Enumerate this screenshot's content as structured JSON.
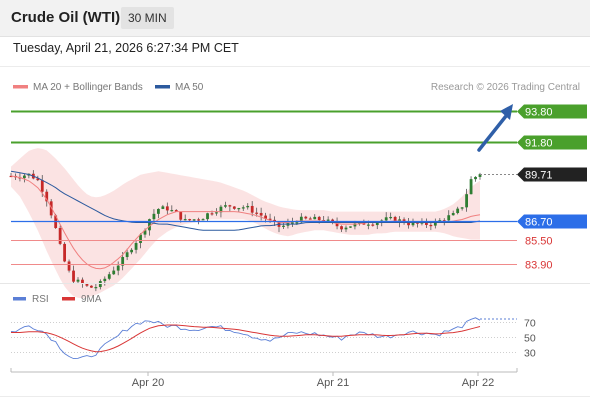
{
  "header": {
    "title": "Crude Oil (WTI)",
    "timeframe": "30 MIN",
    "timestamp": "Tuesday, April 21, 2026 6:27:34 PM CET"
  },
  "legend": {
    "items": [
      {
        "label": "MA 20 + Bollinger Bands",
        "color": "#f08080"
      },
      {
        "label": "MA 50",
        "color": "#2c5a9e"
      }
    ],
    "research": "Research © 2026 Trading Central"
  },
  "chart_data": [
    {
      "type": "candlestick",
      "price_range": [
        82.9,
        95.0
      ],
      "x_labels": [
        "Apr 20",
        "Apr 21",
        "Apr 22"
      ],
      "levels": [
        {
          "value": 93.8,
          "label": "93.80",
          "kind": "target",
          "color": "#4aa02c"
        },
        {
          "value": 91.8,
          "label": "91.80",
          "kind": "target",
          "color": "#4aa02c"
        },
        {
          "value": 89.71,
          "label": "89.71",
          "kind": "last",
          "color": "#222222"
        },
        {
          "value": 86.7,
          "label": "86.70",
          "kind": "pivot",
          "color": "#2c6ee8"
        },
        {
          "value": 85.5,
          "label": "85.50",
          "kind": "support",
          "color": "#d93636"
        },
        {
          "value": 83.9,
          "label": "83.90",
          "kind": "support",
          "color": "#d93636"
        }
      ],
      "close_path": [
        89.6,
        89.6,
        89.7,
        89.4,
        88.3,
        86.5,
        84.3,
        83.0,
        82.7,
        82.4,
        82.5,
        83.1,
        83.7,
        84.3,
        85.1,
        85.8,
        86.9,
        87.5,
        87.5,
        87.2,
        86.7,
        86.8,
        86.9,
        87.3,
        87.5,
        87.7,
        87.6,
        87.6,
        87.3,
        87.0,
        86.6,
        86.3,
        86.5,
        86.8,
        86.8,
        86.8,
        86.8,
        86.5,
        86.3,
        86.4,
        86.5,
        86.6,
        86.6,
        86.8,
        86.8,
        86.7,
        86.5,
        86.5,
        86.5,
        86.6,
        86.9,
        87.1,
        87.7,
        89.4,
        89.7
      ],
      "ma20": [
        89.6,
        89.5,
        89.3,
        88.9,
        88.2,
        87.2,
        86.1,
        85.1,
        84.3,
        83.8,
        83.6,
        83.7,
        84.1,
        84.6,
        85.3,
        85.9,
        86.4,
        86.8,
        87.1,
        87.3,
        87.3,
        87.3,
        87.3,
        87.3,
        87.3,
        87.3,
        87.3,
        87.2,
        87.1,
        86.9,
        86.7,
        86.6,
        86.6,
        86.7,
        86.7,
        86.7,
        86.7,
        86.6,
        86.5,
        86.5,
        86.5,
        86.6,
        86.6,
        86.6,
        86.7,
        86.7,
        86.6,
        86.6,
        86.6,
        86.6,
        86.6,
        86.7,
        86.8,
        87.0,
        87.1
      ],
      "ma50": [
        89.9,
        89.8,
        89.7,
        89.5,
        89.2,
        88.9,
        88.5,
        88.2,
        87.9,
        87.6,
        87.3,
        87.0,
        86.8,
        86.7,
        86.6,
        86.6,
        86.6,
        86.5,
        86.5,
        86.4,
        86.3,
        86.2,
        86.1,
        86.1,
        86.1,
        86.1,
        86.1,
        86.2,
        86.3,
        86.4,
        86.4,
        86.5,
        86.5,
        86.5,
        86.6,
        86.6,
        86.6,
        86.6,
        86.6,
        86.6,
        86.6,
        86.6,
        86.6,
        86.6,
        86.6,
        86.6,
        86.6,
        86.6,
        86.6,
        86.6,
        86.6,
        86.6,
        86.6,
        86.6,
        86.7
      ],
      "bb_upper": [
        90.2,
        90.7,
        91.2,
        91.4,
        91.3,
        90.8,
        90.2,
        89.5,
        88.8,
        88.3,
        88.2,
        88.4,
        88.7,
        89.1,
        89.4,
        89.7,
        89.8,
        89.9,
        89.8,
        89.7,
        89.6,
        89.5,
        89.4,
        89.3,
        89.2,
        89.0,
        88.8,
        88.6,
        88.3,
        88.0,
        87.8,
        87.6,
        87.5,
        87.4,
        87.4,
        87.4,
        87.4,
        87.3,
        87.3,
        87.3,
        87.3,
        87.3,
        87.3,
        87.3,
        87.3,
        87.3,
        87.3,
        87.3,
        87.3,
        87.3,
        87.5,
        87.8,
        88.3,
        88.9,
        89.3
      ],
      "bb_lower": [
        88.9,
        88.3,
        87.3,
        86.2,
        84.9,
        83.7,
        82.6,
        81.9,
        81.7,
        81.8,
        82.0,
        82.3,
        82.6,
        83.1,
        83.7,
        84.3,
        85.0,
        85.6,
        86.0,
        86.3,
        86.5,
        86.6,
        86.7,
        86.8,
        86.8,
        86.8,
        86.8,
        86.8,
        86.6,
        86.3,
        86.0,
        85.8,
        85.7,
        85.9,
        86.0,
        86.1,
        86.1,
        86.0,
        85.9,
        85.8,
        85.8,
        85.8,
        85.9,
        85.9,
        86.0,
        86.0,
        86.0,
        86.0,
        86.0,
        86.0,
        85.9,
        85.7,
        85.6,
        85.5,
        85.5
      ],
      "series": [
        {
          "name": "MA 20 + Bollinger Bands",
          "color": "#f08080"
        },
        {
          "name": "MA 50",
          "color": "#2c5a9e"
        }
      ]
    },
    {
      "type": "line",
      "ylim": [
        10,
        90
      ],
      "y_ticks": [
        70,
        50,
        30
      ],
      "legend": [
        {
          "name": "RSI",
          "color": "#5b7fd6"
        },
        {
          "name": "9MA",
          "color": "#d93636"
        }
      ],
      "series": [
        {
          "name": "RSI",
          "color": "#5b7fd6",
          "values": [
            57,
            60,
            65,
            62,
            55,
            45,
            32,
            22,
            20,
            24,
            30,
            40,
            48,
            58,
            66,
            70,
            72,
            68,
            65,
            64,
            62,
            60,
            62,
            64,
            63,
            60,
            58,
            55,
            50,
            48,
            45,
            50,
            54,
            56,
            55,
            54,
            52,
            50,
            48,
            53,
            55,
            55,
            52,
            50,
            52,
            55,
            57,
            56,
            55,
            53,
            57,
            60,
            65,
            72,
            74
          ]
        },
        {
          "name": "9MA",
          "color": "#d93636",
          "values": [
            56,
            56,
            57,
            57,
            56,
            53,
            48,
            42,
            36,
            32,
            30,
            32,
            36,
            42,
            49,
            56,
            62,
            65,
            66,
            66,
            65,
            64,
            63,
            63,
            62,
            61,
            60,
            58,
            56,
            54,
            52,
            51,
            51,
            52,
            53,
            53,
            52,
            51,
            51,
            52,
            53,
            53,
            53,
            52,
            52,
            53,
            54,
            55,
            55,
            54,
            55,
            56,
            58,
            61,
            64
          ]
        }
      ]
    }
  ]
}
